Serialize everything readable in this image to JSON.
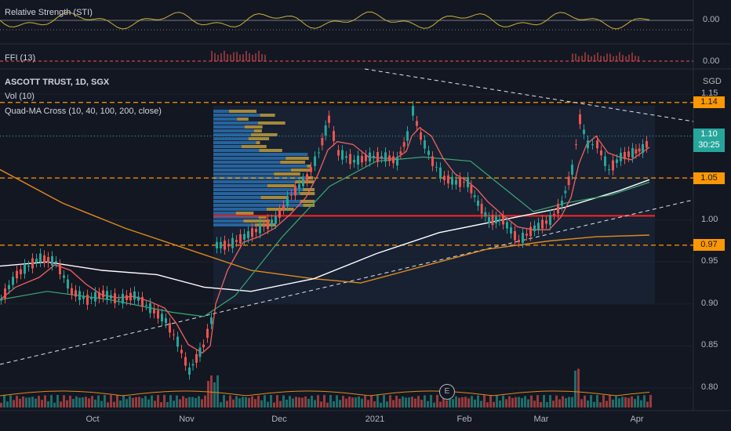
{
  "panes": {
    "sti": {
      "label": "Relative Strength (STI)",
      "value": "0.00"
    },
    "ffi": {
      "label": "FFI (13)",
      "value": "0.00"
    }
  },
  "main": {
    "title": "ASCOTT TRUST, 1D, SGX",
    "vol_label": "Vol (10)",
    "ma_label": "Quad-MA Cross (10, 40, 100, 200, close)",
    "currency": "SGD"
  },
  "price_axis": [
    "1.15",
    "1.10",
    "1.05",
    "1.00",
    "0.95",
    "0.90",
    "0.85",
    "0.80"
  ],
  "levels": [
    {
      "label": "1.14",
      "color": "#ff9800"
    },
    {
      "label": "1.05",
      "color": "#ff9800"
    },
    {
      "label": "0.97",
      "color": "#ff9800"
    }
  ],
  "current_price": {
    "price": "1.10",
    "countdown": "30:25"
  },
  "time_axis": [
    "Oct",
    "Nov",
    "Dec",
    "2021",
    "Feb",
    "Mar",
    "Apr"
  ],
  "earnings_badge": "E",
  "colors": {
    "up": "#26a69a",
    "down": "#ef5350",
    "ma10": "#f06060",
    "ma40": "#3ca873",
    "ma100": "#ffffff",
    "ma200": "#e08a1e",
    "level": "#ff9800",
    "support": "#ff2424"
  },
  "chart_data": {
    "type": "candlestick",
    "symbol": "ASCOTT TRUST",
    "interval": "1D",
    "exchange": "SGX",
    "y_range": [
      0.78,
      1.16
    ],
    "x_range": [
      "Sep 2020",
      "Apr 2021"
    ],
    "horizontal_levels": [
      1.14,
      1.05,
      1.005,
      0.97
    ],
    "current": 1.1,
    "anchors": [
      {
        "x": 0,
        "y": 0.905
      },
      {
        "x": 20,
        "y": 0.935
      },
      {
        "x": 50,
        "y": 0.955
      },
      {
        "x": 70,
        "y": 0.95
      },
      {
        "x": 90,
        "y": 0.915
      },
      {
        "x": 110,
        "y": 0.905
      },
      {
        "x": 130,
        "y": 0.912
      },
      {
        "x": 150,
        "y": 0.905
      },
      {
        "x": 170,
        "y": 0.91
      },
      {
        "x": 190,
        "y": 0.895
      },
      {
        "x": 210,
        "y": 0.88
      },
      {
        "x": 225,
        "y": 0.855
      },
      {
        "x": 240,
        "y": 0.82
      },
      {
        "x": 258,
        "y": 0.85
      },
      {
        "x": 268,
        "y": 0.88
      },
      {
        "x": 275,
        "y": 0.97
      },
      {
        "x": 290,
        "y": 0.97
      },
      {
        "x": 310,
        "y": 0.98
      },
      {
        "x": 330,
        "y": 0.99
      },
      {
        "x": 350,
        "y": 1.0
      },
      {
        "x": 370,
        "y": 1.03
      },
      {
        "x": 390,
        "y": 1.05
      },
      {
        "x": 405,
        "y": 1.08
      },
      {
        "x": 418,
        "y": 1.12
      },
      {
        "x": 430,
        "y": 1.08
      },
      {
        "x": 450,
        "y": 1.07
      },
      {
        "x": 470,
        "y": 1.075
      },
      {
        "x": 490,
        "y": 1.075
      },
      {
        "x": 505,
        "y": 1.07
      },
      {
        "x": 518,
        "y": 1.1
      },
      {
        "x": 525,
        "y": 1.13
      },
      {
        "x": 535,
        "y": 1.1
      },
      {
        "x": 550,
        "y": 1.07
      },
      {
        "x": 565,
        "y": 1.05
      },
      {
        "x": 580,
        "y": 1.045
      },
      {
        "x": 595,
        "y": 1.045
      },
      {
        "x": 608,
        "y": 1.02
      },
      {
        "x": 622,
        "y": 1.0
      },
      {
        "x": 640,
        "y": 1.0
      },
      {
        "x": 660,
        "y": 0.975
      },
      {
        "x": 680,
        "y": 0.99
      },
      {
        "x": 700,
        "y": 1.0
      },
      {
        "x": 715,
        "y": 1.02
      },
      {
        "x": 728,
        "y": 1.06
      },
      {
        "x": 738,
        "y": 1.12
      },
      {
        "x": 748,
        "y": 1.09
      },
      {
        "x": 760,
        "y": 1.09
      },
      {
        "x": 775,
        "y": 1.06
      },
      {
        "x": 790,
        "y": 1.075
      },
      {
        "x": 805,
        "y": 1.08
      },
      {
        "x": 818,
        "y": 1.085
      },
      {
        "x": 828,
        "y": 1.095
      }
    ]
  }
}
